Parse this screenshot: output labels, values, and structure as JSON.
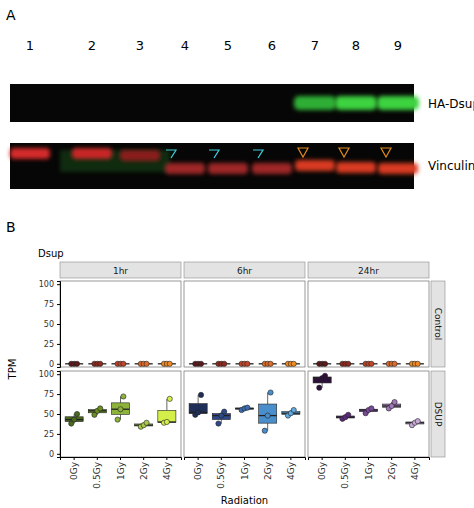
{
  "panel_a": {
    "label": "A",
    "lanes": [
      "1",
      "2",
      "3",
      "4",
      "5",
      "6",
      "7",
      "8",
      "9"
    ],
    "rows": [
      "HA-Dsup",
      "Vinculin"
    ]
  },
  "chart_data": {
    "type": "box",
    "panel_label": "B",
    "title": "Dsup",
    "x_label": "Radiation",
    "y_label": "TPM",
    "categories": [
      "0Gy",
      "0.5Gy",
      "1Gy",
      "2Gy",
      "4Gy"
    ],
    "facet_columns": [
      "1hr",
      "6hr",
      "24hr"
    ],
    "facet_rows": [
      "Control",
      "DSUP"
    ],
    "ylim": [
      -4,
      104
    ],
    "yticks": [
      0,
      25,
      50,
      75,
      100
    ],
    "grid": false,
    "panels": [
      {
        "colors": [
          "#5c1a1b",
          "#8e2a1e",
          "#c0462a",
          "#dd6b2b",
          "#f08a24"
        ],
        "boxes": [
          {
            "low": 0,
            "q1": 0,
            "median": 0,
            "q3": 0,
            "high": 0
          },
          {
            "low": 0,
            "q1": 0,
            "median": 0,
            "q3": 0,
            "high": 0
          },
          {
            "low": 0,
            "q1": 0,
            "median": 0,
            "q3": 0,
            "high": 0
          },
          {
            "low": 0,
            "q1": 0,
            "median": 0,
            "q3": 0,
            "high": 0
          },
          {
            "low": 0,
            "q1": 0,
            "median": 0,
            "q3": 0,
            "high": 0
          }
        ],
        "points": [
          [
            0,
            0,
            0
          ],
          [
            0,
            0,
            0
          ],
          [
            0,
            0,
            0
          ],
          [
            0,
            0,
            0
          ],
          [
            0,
            0,
            0
          ]
        ]
      },
      {
        "colors": [
          "#5c1a1b",
          "#8e2a1e",
          "#c0462a",
          "#dd6b2b",
          "#f08a24"
        ],
        "boxes": [
          {
            "low": 0,
            "q1": 0,
            "median": 0,
            "q3": 0,
            "high": 0
          },
          {
            "low": 0,
            "q1": 0,
            "median": 0,
            "q3": 0,
            "high": 0
          },
          {
            "low": 0,
            "q1": 0,
            "median": 0,
            "q3": 0,
            "high": 0
          },
          {
            "low": 0,
            "q1": 0,
            "median": 0,
            "q3": 0,
            "high": 0
          },
          {
            "low": 0,
            "q1": 0,
            "median": 0,
            "q3": 0,
            "high": 0
          }
        ],
        "points": [
          [
            0,
            0,
            0
          ],
          [
            0,
            0,
            0
          ],
          [
            0,
            0,
            0
          ],
          [
            0,
            0,
            0
          ],
          [
            0,
            0,
            0
          ]
        ]
      },
      {
        "colors": [
          "#5c1a1b",
          "#8e2a1e",
          "#c0462a",
          "#dd6b2b",
          "#f08a24"
        ],
        "boxes": [
          {
            "low": 0,
            "q1": 0,
            "median": 0,
            "q3": 0,
            "high": 0
          },
          {
            "low": 0,
            "q1": 0,
            "median": 0,
            "q3": 0,
            "high": 0
          },
          {
            "low": 0,
            "q1": 0,
            "median": 0,
            "q3": 0,
            "high": 0
          },
          {
            "low": 0,
            "q1": 0,
            "median": 0,
            "q3": 0,
            "high": 0
          },
          {
            "low": 0,
            "q1": 0,
            "median": 0,
            "q3": 0,
            "high": 0
          }
        ],
        "points": [
          [
            0,
            0,
            0
          ],
          [
            0,
            0,
            0
          ],
          [
            0,
            0,
            0
          ],
          [
            0,
            0,
            0
          ],
          [
            0,
            0,
            0
          ]
        ]
      },
      {
        "colors": [
          "#4a6b1e",
          "#6b8e23",
          "#8db33a",
          "#a8c94a",
          "#d4ef4a"
        ],
        "boxes": [
          {
            "low": 38,
            "q1": 40.5,
            "median": 43,
            "q3": 46.5,
            "high": 50
          },
          {
            "low": 49,
            "q1": 51.5,
            "median": 54,
            "q3": 55.5,
            "high": 57
          },
          {
            "low": 43,
            "q1": 49.5,
            "median": 56,
            "q3": 64,
            "high": 72
          },
          {
            "low": 34,
            "q1": 35,
            "median": 36,
            "q3": 37.5,
            "high": 39
          },
          {
            "low": 39,
            "q1": 39.5,
            "median": 40,
            "q3": 54.5,
            "high": 69
          }
        ],
        "points": [
          [
            38,
            43,
            50
          ],
          [
            49,
            54,
            57
          ],
          [
            43,
            56,
            72
          ],
          [
            34,
            36,
            39
          ],
          [
            39,
            40,
            69
          ]
        ]
      },
      {
        "colors": [
          "#1f2f5a",
          "#2e4a8a",
          "#3b6db0",
          "#4a8fcc",
          "#5fa8e0"
        ],
        "boxes": [
          {
            "low": 49,
            "q1": 50.5,
            "median": 52,
            "q3": 63,
            "high": 74
          },
          {
            "low": 38,
            "q1": 43,
            "median": 48,
            "q3": 50.5,
            "high": 53
          },
          {
            "low": 55,
            "q1": 56,
            "median": 57,
            "q3": 57.5,
            "high": 58
          },
          {
            "low": 29,
            "q1": 38.5,
            "median": 48,
            "q3": 62.5,
            "high": 77
          },
          {
            "low": 48,
            "q1": 49.5,
            "median": 51,
            "q3": 53,
            "high": 55
          }
        ],
        "points": [
          [
            49,
            52,
            74
          ],
          [
            38,
            48,
            53
          ],
          [
            55,
            57,
            58
          ],
          [
            29,
            48,
            77
          ],
          [
            48,
            51,
            55
          ]
        ]
      },
      {
        "colors": [
          "#2d0f3a",
          "#5a2a7a",
          "#7a4a9a",
          "#a07ab8",
          "#c8a8d8"
        ],
        "boxes": [
          {
            "low": 83,
            "q1": 89,
            "median": 95,
            "q3": 96.5,
            "high": 98
          },
          {
            "low": 44,
            "q1": 45,
            "median": 46,
            "q3": 47.5,
            "high": 49
          },
          {
            "low": 51,
            "q1": 53,
            "median": 55,
            "q3": 56,
            "high": 57
          },
          {
            "low": 57,
            "q1": 58.5,
            "median": 60,
            "q3": 62.5,
            "high": 65
          },
          {
            "low": 36,
            "q1": 37.5,
            "median": 39,
            "q3": 40,
            "high": 41
          }
        ],
        "points": [
          [
            83,
            95,
            98
          ],
          [
            44,
            46,
            49
          ],
          [
            51,
            55,
            57
          ],
          [
            57,
            60,
            65
          ],
          [
            36,
            39,
            41
          ]
        ]
      }
    ]
  }
}
